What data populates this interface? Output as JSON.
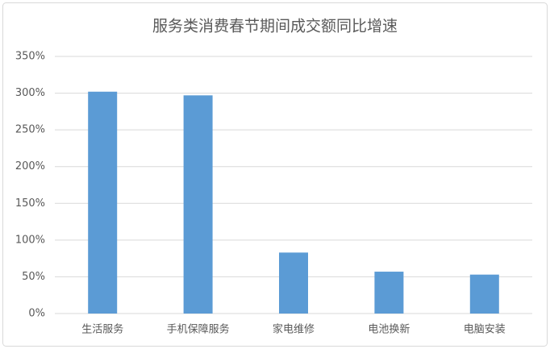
{
  "chart_data": {
    "type": "bar",
    "title": "服务类消费春节期间成交额同比增速",
    "categories": [
      "生活服务",
      "手机保障服务",
      "家电维修",
      "电池换新",
      "电脑安装"
    ],
    "values": [
      302,
      297,
      83,
      57,
      53
    ],
    "color": "#5b9bd5",
    "ylim": [
      0,
      350
    ],
    "yticks": [
      {
        "value": 0,
        "label": "0%"
      },
      {
        "value": 50,
        "label": "50%"
      },
      {
        "value": 100,
        "label": "100%"
      },
      {
        "value": 150,
        "label": "150%"
      },
      {
        "value": 200,
        "label": "200%"
      },
      {
        "value": 250,
        "label": "250%"
      },
      {
        "value": 300,
        "label": "300%"
      },
      {
        "value": 350,
        "label": "350%"
      }
    ],
    "grid": true
  }
}
